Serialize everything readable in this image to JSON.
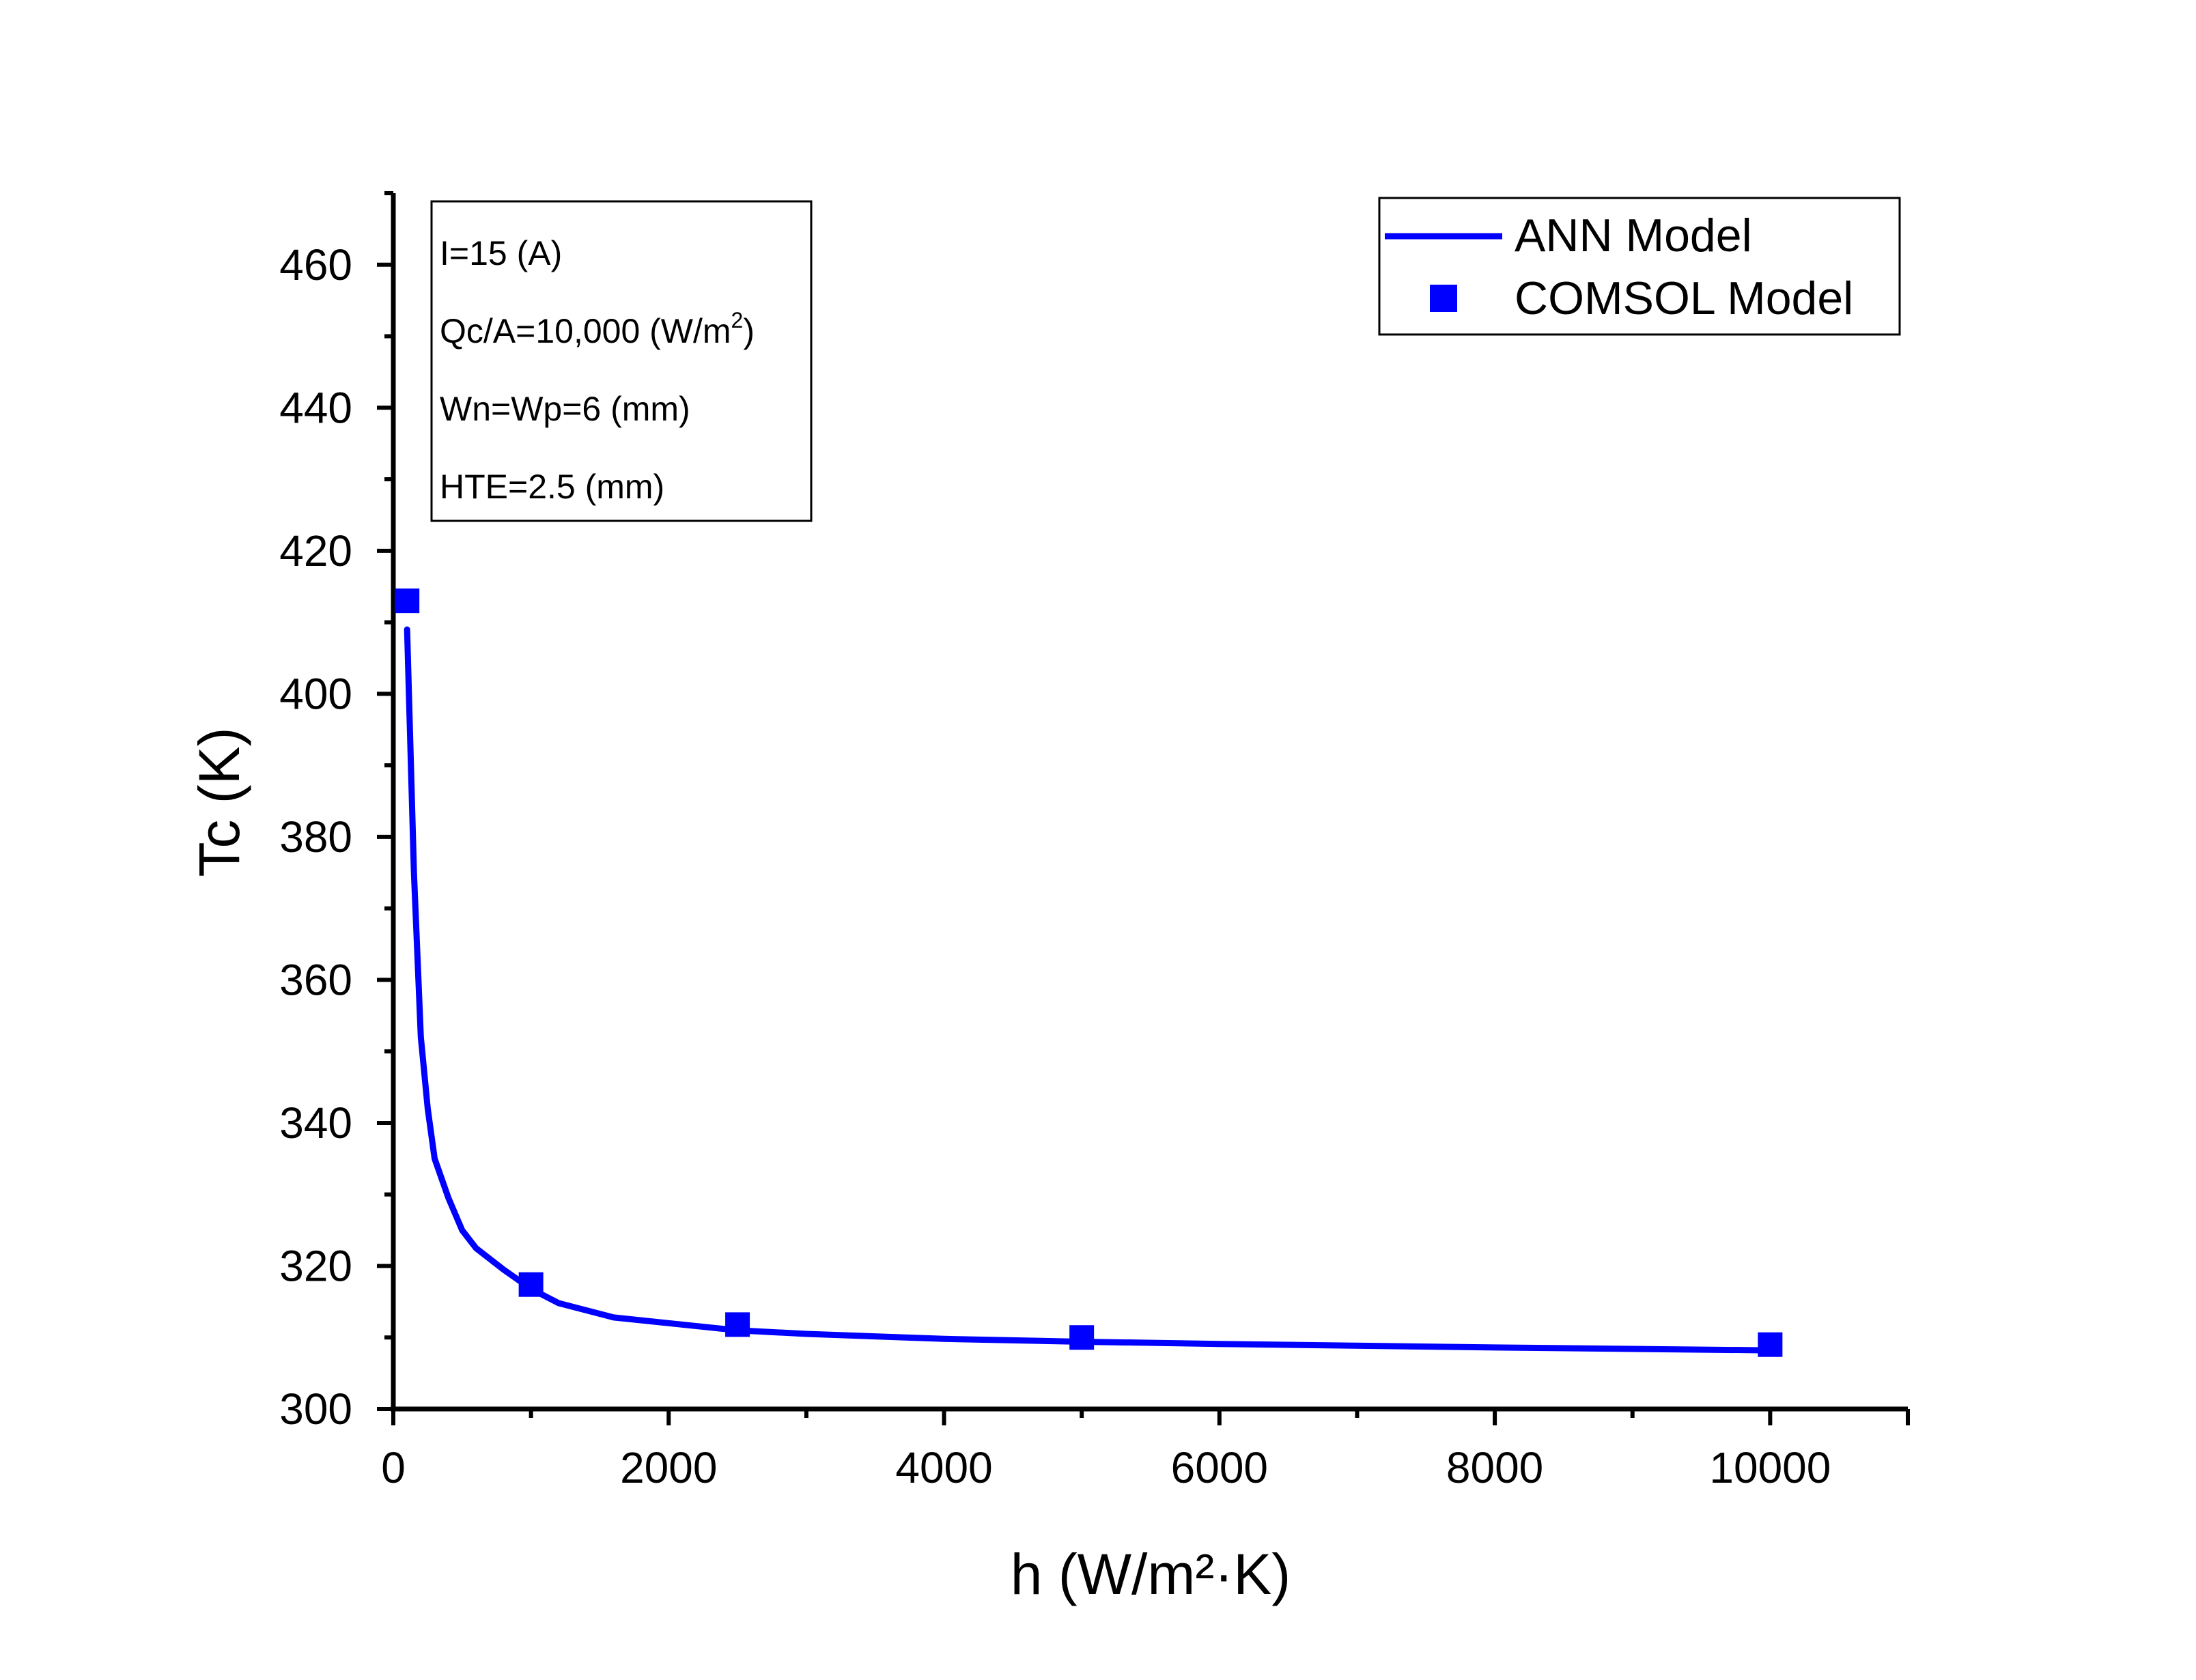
{
  "chart_data": {
    "type": "line",
    "title": "",
    "xlabel": "h (W/m²·K)",
    "ylabel": "Tc (K)",
    "xlim": [
      0,
      11000
    ],
    "ylim": [
      300,
      470
    ],
    "xticks": [
      0,
      2000,
      4000,
      6000,
      8000,
      10000
    ],
    "xtick_labels": [
      "0",
      "2000",
      "4000",
      "6000",
      "8000",
      "10000"
    ],
    "yticks": [
      300,
      320,
      340,
      360,
      380,
      400,
      420,
      440,
      460
    ],
    "ytick_labels": [
      "300",
      "320",
      "340",
      "360",
      "380",
      "400",
      "420",
      "440",
      "460"
    ],
    "grid": false,
    "legend_position": "top-right",
    "series": [
      {
        "name": "ANN Model",
        "style": "line",
        "color": "#0000FF",
        "x": [
          100,
          150,
          200,
          250,
          300,
          400,
          500,
          600,
          800,
          1000,
          1200,
          1600,
          2000,
          2500,
          3000,
          4000,
          5000,
          6000,
          8000,
          10000
        ],
        "y": [
          409,
          375,
          352,
          342,
          335,
          329.5,
          325,
          322.5,
          319.5,
          316.8,
          314.8,
          312.8,
          312.0,
          311.0,
          310.5,
          309.8,
          309.4,
          309.1,
          308.6,
          308.2
        ]
      },
      {
        "name": "COMSOL Model",
        "style": "markers",
        "marker": "square",
        "color": "#0000FF",
        "x": [
          100,
          1000,
          2500,
          5000,
          10000
        ],
        "y": [
          413,
          317.4,
          311.8,
          310.0,
          309.0
        ]
      }
    ],
    "annotation": {
      "lines": [
        {
          "text": "I=15 (A)"
        },
        {
          "text": "Qc/A=10,000 (W/m",
          "sup": "2",
          "after": ")"
        },
        {
          "text": "Wn=Wp=6 (mm)"
        },
        {
          "text": "HTE=2.5 (mm)"
        }
      ]
    }
  }
}
